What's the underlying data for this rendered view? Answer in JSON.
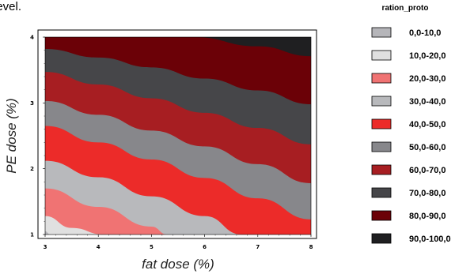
{
  "page": {
    "top_text_fragment": "level."
  },
  "chart_data": {
    "type": "contour",
    "xlabel": "fat dose (%)",
    "ylabel": "PE dose (%)",
    "xlim": [
      3,
      8
    ],
    "ylim": [
      1,
      4
    ],
    "x_ticks": [
      "3",
      "4",
      "5",
      "6",
      "7",
      "8"
    ],
    "y_ticks": [
      "1",
      "2",
      "3",
      "4"
    ],
    "grid": false,
    "legend_position": "right",
    "legend_title": "ration_proto",
    "levels": [
      {
        "label": "0,0-10,0",
        "color": "#b5b5b9"
      },
      {
        "label": "10,0-20,0",
        "color": "#e0e0e0"
      },
      {
        "label": "20,0-30,0",
        "color": "#f07373"
      },
      {
        "label": "30,0-40,0",
        "color": "#b8b9bc"
      },
      {
        "label": "40,0-50,0",
        "color": "#ec2b29"
      },
      {
        "label": "50,0-60,0",
        "color": "#87878b"
      },
      {
        "label": "60,0-70,0",
        "color": "#a71e22"
      },
      {
        "label": "70,0-80,0",
        "color": "#464649"
      },
      {
        "label": "80,0-90,0",
        "color": "#6b0107"
      },
      {
        "label": "90,0-100,0",
        "color": "#1f1f21"
      }
    ],
    "contour_boundaries": [
      {
        "level": 10,
        "points": [
          [
            3.0,
            1.05
          ],
          [
            3.1,
            1.0
          ]
        ]
      },
      {
        "level": 20,
        "points": [
          [
            3.0,
            1.28
          ],
          [
            3.5,
            1.1
          ],
          [
            4.1,
            1.0
          ]
        ]
      },
      {
        "level": 30,
        "points": [
          [
            3.0,
            1.7
          ],
          [
            4.0,
            1.42
          ],
          [
            5.0,
            1.12
          ],
          [
            5.3,
            1.0
          ]
        ]
      },
      {
        "level": 40,
        "points": [
          [
            3.0,
            2.12
          ],
          [
            4.0,
            1.87
          ],
          [
            5.0,
            1.58
          ],
          [
            6.0,
            1.28
          ],
          [
            6.7,
            1.0
          ]
        ]
      },
      {
        "level": 50,
        "points": [
          [
            3.0,
            2.65
          ],
          [
            4.0,
            2.4
          ],
          [
            5.0,
            2.14
          ],
          [
            6.0,
            1.86
          ],
          [
            7.0,
            1.55
          ],
          [
            8.0,
            1.23
          ]
        ]
      },
      {
        "level": 60,
        "points": [
          [
            3.0,
            3.03
          ],
          [
            4.0,
            2.82
          ],
          [
            5.0,
            2.58
          ],
          [
            6.0,
            2.34
          ],
          [
            7.0,
            2.07
          ],
          [
            8.0,
            1.78
          ]
        ]
      },
      {
        "level": 70,
        "points": [
          [
            3.0,
            3.47
          ],
          [
            4.0,
            3.28
          ],
          [
            5.0,
            3.07
          ],
          [
            6.0,
            2.85
          ],
          [
            7.0,
            2.62
          ],
          [
            8.0,
            2.37
          ]
        ]
      },
      {
        "level": 80,
        "points": [
          [
            3.0,
            3.82
          ],
          [
            4.0,
            3.69
          ],
          [
            5.0,
            3.54
          ],
          [
            6.0,
            3.37
          ],
          [
            7.0,
            3.19
          ],
          [
            8.0,
            2.98
          ]
        ]
      },
      {
        "level": 90,
        "points": [
          [
            5.8,
            4.0
          ],
          [
            7.0,
            3.86
          ],
          [
            8.0,
            3.71
          ]
        ]
      }
    ]
  }
}
